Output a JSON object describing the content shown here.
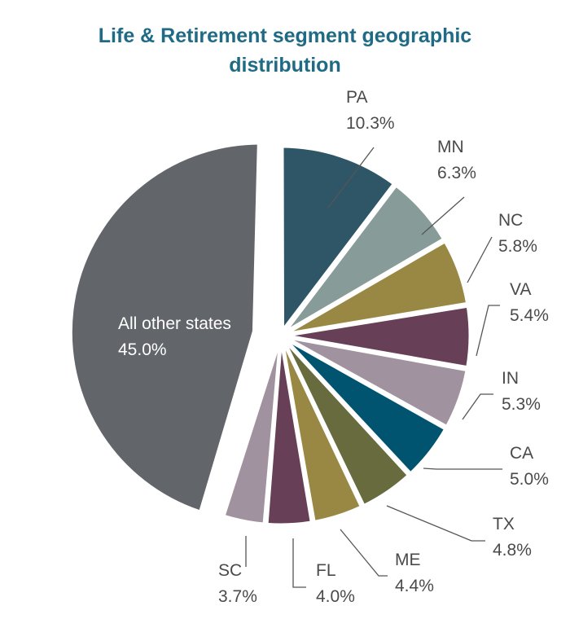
{
  "chart_data": {
    "type": "pie",
    "title_lines": [
      "Life & Retirement segment geographic",
      "distribution"
    ],
    "slices": [
      {
        "label": "PA",
        "value_text": "10.3%",
        "value": 10.3,
        "color": "#2f5666"
      },
      {
        "label": "MN",
        "value_text": "6.3%",
        "value": 6.3,
        "color": "#879c99"
      },
      {
        "label": "NC",
        "value_text": "5.8%",
        "value": 5.8,
        "color": "#998844"
      },
      {
        "label": "VA",
        "value_text": "5.4%",
        "value": 5.4,
        "color": "#673f57"
      },
      {
        "label": "IN",
        "value_text": "5.3%",
        "value": 5.3,
        "color": "#a0929e"
      },
      {
        "label": "CA",
        "value_text": "5.0%",
        "value": 5.0,
        "color": "#00546f"
      },
      {
        "label": "TX",
        "value_text": "4.8%",
        "value": 4.8,
        "color": "#676b3d"
      },
      {
        "label": "ME",
        "value_text": "4.4%",
        "value": 4.4,
        "color": "#998844"
      },
      {
        "label": "FL",
        "value_text": "4.0%",
        "value": 4.0,
        "color": "#673f57"
      },
      {
        "label": "SC",
        "value_text": "3.7%",
        "value": 3.7,
        "color": "#a0929e"
      },
      {
        "label": "All other states",
        "value_text": "45.0%",
        "value": 45.0,
        "color": "#62656a"
      }
    ]
  }
}
